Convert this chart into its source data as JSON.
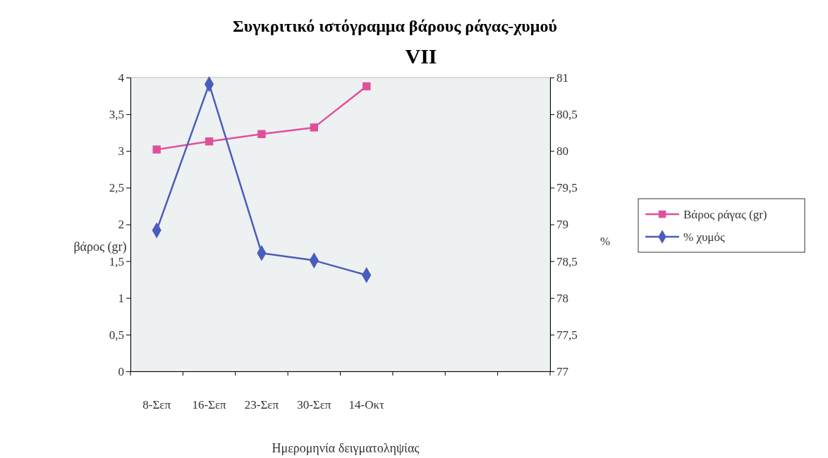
{
  "chart_data": {
    "type": "line",
    "title": "Συγκριτικό ιστόγραμμα βάρους ράγας-χυμού",
    "subtitle": "VII",
    "xlabel": "Ημερομηνία δειγματοληψίας",
    "ylabel": "βάρος (gr)",
    "y2label": "%",
    "categories": [
      "8-Σεπ",
      "16-Σεπ",
      "23-Σεπ",
      "30-Σεπ",
      "14-Οκτ",
      null,
      null,
      null
    ],
    "series": [
      {
        "name": "Βάρος ράγας (gr)",
        "color": "#e0509a",
        "marker": "square",
        "values": [
          3.02,
          3.13,
          3.23,
          3.32,
          3.88,
          null,
          null,
          null
        ]
      },
      {
        "name": "% χυμός",
        "color": "#4a5cbd",
        "marker": "diamond",
        "axis": "y2",
        "values": [
          78.92,
          80.91,
          78.61,
          78.51,
          78.31,
          null,
          null,
          null
        ]
      }
    ],
    "ylim": [
      0,
      4
    ],
    "yticks": [
      0,
      {
        "value": 0.5,
        "label": "0,5"
      },
      1,
      {
        "value": 1.5,
        "label": "1,5"
      },
      2,
      {
        "value": 2.5,
        "label": "2,5"
      },
      3,
      {
        "value": 3.5,
        "label": "3,5"
      },
      4
    ],
    "y2lim": [
      77,
      81
    ],
    "y2ticks": [
      77,
      {
        "value": 77.5,
        "label": "77,5"
      },
      78,
      {
        "value": 78.5,
        "label": "78,5"
      },
      79,
      {
        "value": 79.5,
        "label": "79,5"
      },
      80,
      {
        "value": 80.5,
        "label": "80,5"
      },
      81
    ],
    "grid": false,
    "legend": "right",
    "line_style": "solid"
  }
}
